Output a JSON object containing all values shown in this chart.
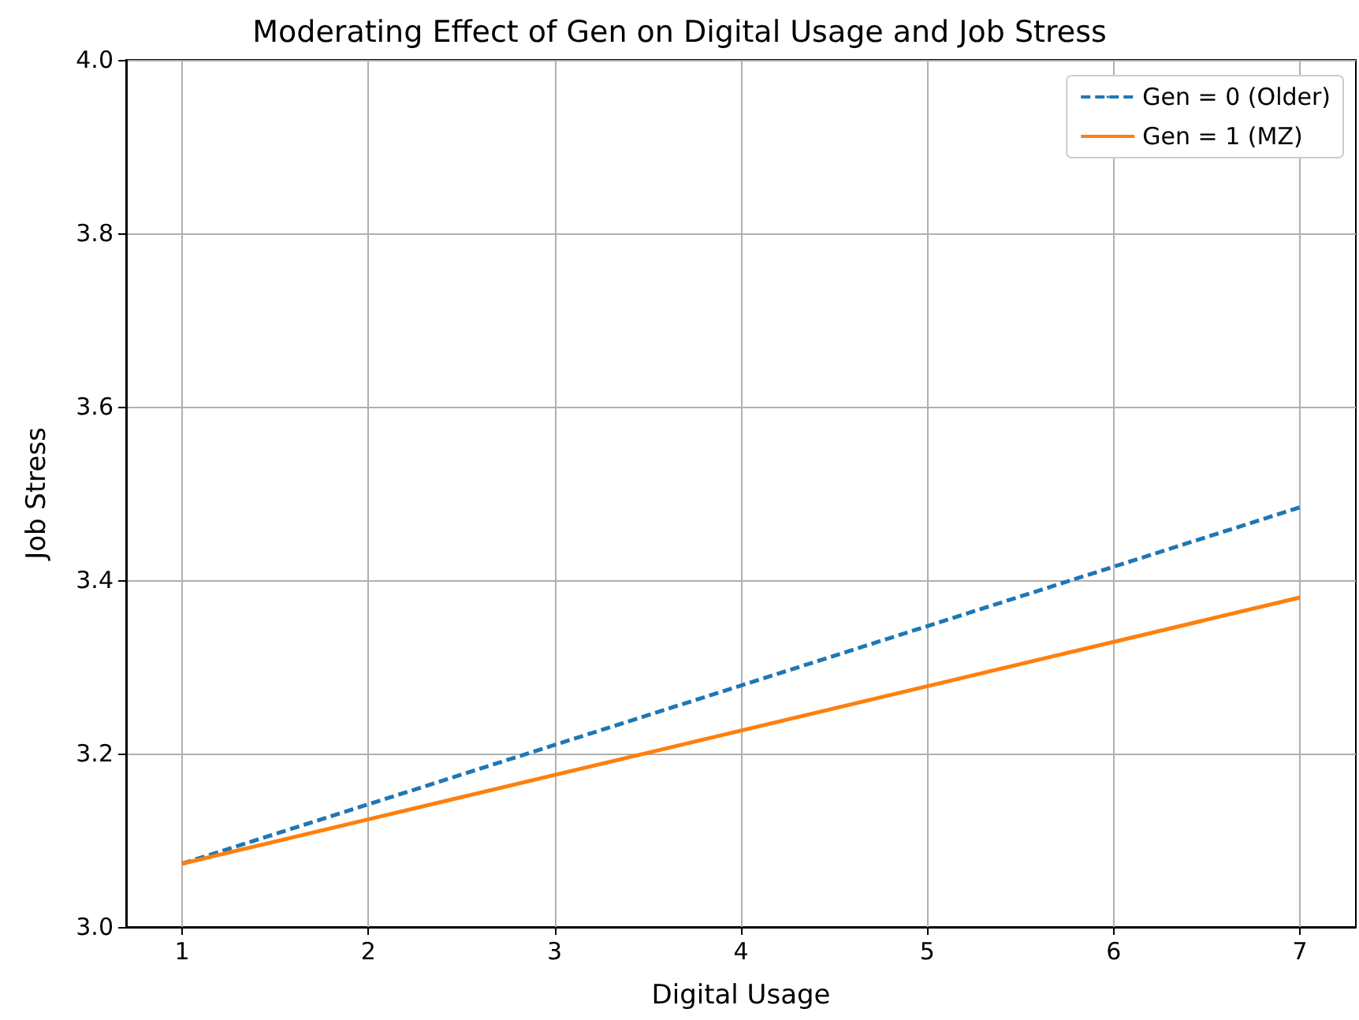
{
  "chart_data": {
    "type": "line",
    "title": "Moderating Effect of Gen on Digital Usage and Job Stress",
    "xlabel": "Digital Usage",
    "ylabel": "Job Stress",
    "x": [
      1,
      7
    ],
    "series": [
      {
        "name": "Gen = 0 (Older)",
        "color": "#1f77b4",
        "values": [
          3.073,
          3.484
        ],
        "line_style": "dashed"
      },
      {
        "name": "Gen = 1 (MZ)",
        "color": "#ff7f0e",
        "values": [
          3.073,
          3.38
        ],
        "line_style": "solid"
      }
    ],
    "xlim": [
      0.7,
      7.3
    ],
    "xticks": [
      1,
      2,
      3,
      4,
      5,
      6,
      7
    ],
    "ylim": [
      3.0,
      4.0
    ],
    "yticks": [
      {
        "value": 3.0,
        "label": "3.0"
      },
      {
        "value": 3.2,
        "label": "3.2"
      },
      {
        "value": 3.4,
        "label": "3.4"
      },
      {
        "value": 3.6,
        "label": "3.6"
      },
      {
        "value": 3.8,
        "label": "3.8"
      },
      {
        "value": 4.0,
        "label": "4.0"
      }
    ],
    "grid": true,
    "legend": "top right",
    "marker": "none"
  }
}
